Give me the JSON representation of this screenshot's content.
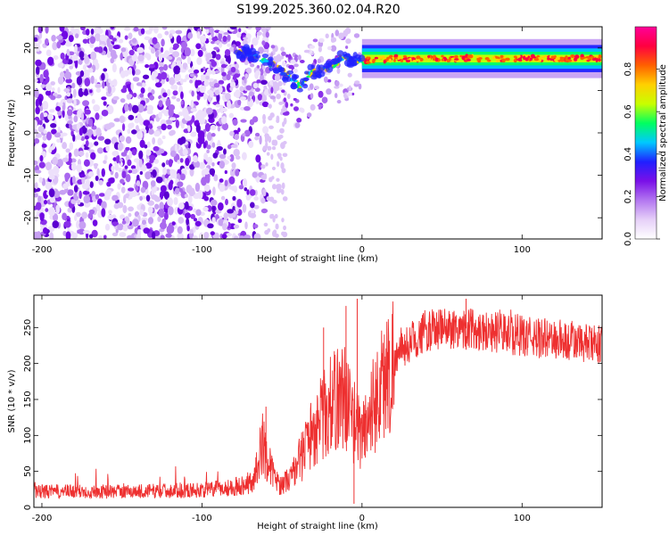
{
  "title": "S199.2025.360.02.04.R20",
  "chart_data": [
    {
      "type": "heatmap",
      "name": "spectrogram",
      "xlabel": "Height of straight line (km)",
      "ylabel": "Frequency (Hz)",
      "xlim": [
        -205,
        150
      ],
      "ylim": [
        -25,
        25
      ],
      "xticks": [
        "-200",
        "-100",
        "0",
        "100"
      ],
      "xtick_values": [
        -200,
        -100,
        0,
        100
      ],
      "yticks": [
        "20",
        "10",
        "0",
        "-10",
        "-20"
      ],
      "ytick_values": [
        20,
        10,
        0,
        -10,
        -20
      ],
      "ridge": {
        "description": "strong spectral line",
        "x": [
          -75,
          -65,
          -55,
          -48,
          -42,
          -38,
          -33,
          -25,
          -18,
          -12,
          -6,
          0,
          20,
          60,
          100,
          150
        ],
        "y": [
          19,
          18,
          16,
          14,
          12,
          11,
          14,
          15,
          16,
          18,
          17,
          17,
          17.5,
          17.5,
          17.5,
          17.5
        ]
      },
      "colorbar": {
        "label": "Normalized spectral amplitude",
        "range": [
          0,
          1
        ],
        "ticks": [
          "0.0",
          "0.2",
          "0.4",
          "0.6",
          "0.8"
        ],
        "tick_values": [
          0.0,
          0.2,
          0.4,
          0.6,
          0.8
        ],
        "colors": [
          "#ffffff",
          "#e6d0f8",
          "#b377f0",
          "#7a10e8",
          "#2020ff",
          "#00c8ff",
          "#00ff60",
          "#c8ff00",
          "#ffd000",
          "#ff6000",
          "#ff0040",
          "#ff0099"
        ]
      }
    },
    {
      "type": "line",
      "name": "snr",
      "xlabel": "Height of straight line (km)",
      "ylabel": "SNR (10 * v/v)",
      "xlim": [
        -205,
        150
      ],
      "ylim": [
        0,
        295
      ],
      "xticks": [
        "-200",
        "-100",
        "0",
        "100"
      ],
      "xtick_values": [
        -200,
        -100,
        0,
        100
      ],
      "yticks": [
        "0",
        "50",
        "100",
        "150",
        "200",
        "250"
      ],
      "ytick_values": [
        0,
        50,
        100,
        150,
        200,
        250
      ],
      "color": "#ee3030",
      "envelope": {
        "x": [
          -205,
          -150,
          -100,
          -80,
          -68,
          -62,
          -58,
          -52,
          -45,
          -38,
          -30,
          -20,
          -12,
          -5,
          0,
          5,
          10,
          15,
          20,
          30,
          40,
          60,
          80,
          100,
          120,
          150
        ],
        "y": [
          22,
          22,
          24,
          28,
          35,
          90,
          60,
          30,
          40,
          70,
          110,
          140,
          160,
          120,
          100,
          130,
          160,
          180,
          205,
          230,
          245,
          250,
          245,
          238,
          232,
          225
        ]
      },
      "spikes": [
        {
          "x": -60,
          "y": 140
        },
        {
          "x": -24,
          "y": 250
        },
        {
          "x": -10,
          "y": 280
        },
        {
          "x": -3,
          "y": 290
        },
        {
          "x": -5,
          "y": 5
        },
        {
          "x": 65,
          "y": 290
        }
      ]
    }
  ]
}
